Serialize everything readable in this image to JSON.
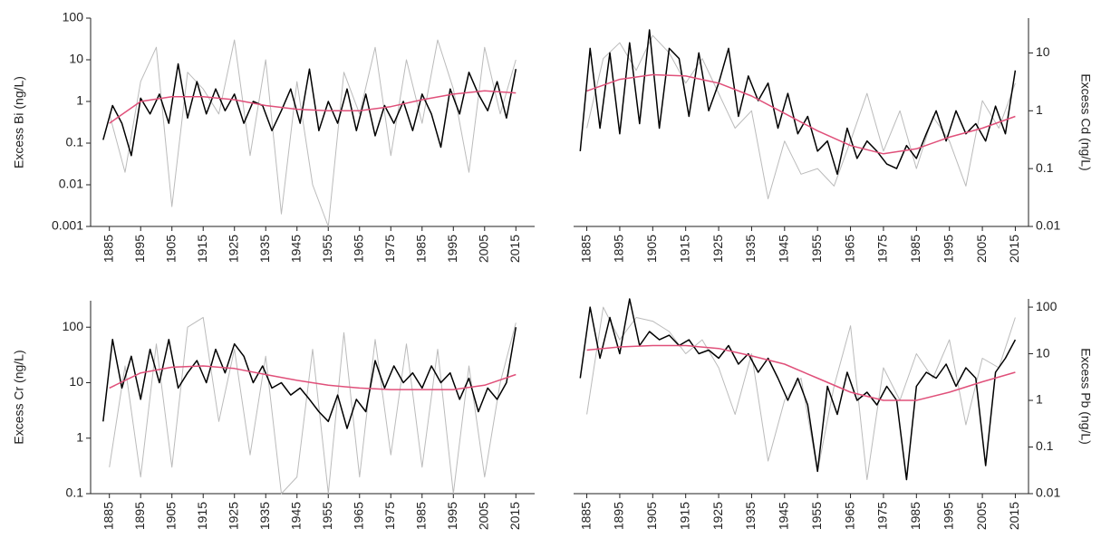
{
  "chart_data": [
    {
      "type": "line",
      "ylabel": "Excess Bi (ng/L)",
      "log": true,
      "yaxis": "left",
      "xlim": [
        1879,
        2021
      ],
      "xticks": [
        1885,
        1895,
        1905,
        1915,
        1925,
        1935,
        1945,
        1955,
        1965,
        1975,
        1985,
        1995,
        2005,
        2015
      ],
      "ylim": [
        0.001,
        100
      ],
      "yticks": [
        0.001,
        0.01,
        0.1,
        1,
        10,
        100
      ],
      "series": [
        {
          "color": "#bbbbbb",
          "x": [
            1885,
            1890,
            1895,
            1900,
            1905,
            1910,
            1915,
            1920,
            1925,
            1930,
            1935,
            1940,
            1945,
            1950,
            1955,
            1960,
            1965,
            1970,
            1975,
            1980,
            1985,
            1990,
            1995,
            2000,
            2005,
            2010,
            2015
          ],
          "values": [
            0.5,
            0.02,
            3,
            20,
            0.003,
            5,
            2,
            0.5,
            30,
            0.05,
            10,
            0.002,
            3,
            0.01,
            0.001,
            5,
            0.5,
            20,
            0.05,
            10,
            0.3,
            30,
            2,
            0.02,
            20,
            0.5,
            10
          ]
        },
        {
          "color": "#000000",
          "x": [
            1883,
            1886,
            1889,
            1892,
            1895,
            1898,
            1901,
            1904,
            1907,
            1910,
            1913,
            1916,
            1919,
            1922,
            1925,
            1928,
            1931,
            1934,
            1937,
            1940,
            1943,
            1946,
            1949,
            1952,
            1955,
            1958,
            1961,
            1964,
            1967,
            1970,
            1973,
            1976,
            1979,
            1982,
            1985,
            1988,
            1991,
            1994,
            1997,
            2000,
            2003,
            2006,
            2009,
            2012,
            2015
          ],
          "values": [
            0.12,
            0.8,
            0.3,
            0.05,
            1.2,
            0.5,
            1.5,
            0.3,
            8,
            0.4,
            3,
            0.5,
            2,
            0.6,
            1.5,
            0.3,
            1,
            0.8,
            0.2,
            0.6,
            2,
            0.3,
            6,
            0.2,
            1,
            0.3,
            2,
            0.2,
            1.5,
            0.15,
            0.8,
            0.3,
            1,
            0.2,
            1.5,
            0.5,
            0.08,
            2,
            0.5,
            5,
            1.5,
            0.6,
            3,
            0.4,
            6
          ]
        },
        {
          "color": "#e0507a",
          "x": [
            1885,
            1895,
            1905,
            1915,
            1925,
            1935,
            1945,
            1955,
            1965,
            1975,
            1985,
            1995,
            2005,
            2015
          ],
          "values": [
            0.3,
            1,
            1.3,
            1.3,
            1.1,
            0.8,
            0.65,
            0.6,
            0.6,
            0.75,
            1.1,
            1.5,
            1.8,
            1.6
          ]
        }
      ]
    },
    {
      "type": "line",
      "ylabel": "Excess Cd (ng/L)",
      "log": true,
      "yaxis": "right",
      "xlim": [
        1881,
        2019
      ],
      "xticks": [
        1885,
        1895,
        1905,
        1915,
        1925,
        1935,
        1945,
        1955,
        1965,
        1975,
        1985,
        1995,
        2005,
        2015
      ],
      "ylim": [
        0.01,
        40
      ],
      "yticks": [
        0.01,
        0.1,
        1,
        10
      ],
      "series": [
        {
          "color": "#bbbbbb",
          "x": [
            1885,
            1890,
            1895,
            1900,
            1905,
            1910,
            1915,
            1920,
            1925,
            1930,
            1935,
            1940,
            1945,
            1950,
            1955,
            1960,
            1965,
            1970,
            1975,
            1980,
            1985,
            1990,
            1995,
            2000,
            2005,
            2010,
            2015
          ],
          "values": [
            0.5,
            8,
            15,
            5,
            20,
            10,
            3,
            8,
            2,
            0.5,
            1,
            0.03,
            0.3,
            0.08,
            0.1,
            0.05,
            0.3,
            2,
            0.2,
            1,
            0.1,
            0.8,
            0.3,
            0.05,
            1.5,
            0.5,
            3
          ]
        },
        {
          "color": "#000000",
          "x": [
            1883,
            1886,
            1889,
            1892,
            1895,
            1898,
            1901,
            1904,
            1907,
            1910,
            1913,
            1916,
            1919,
            1922,
            1925,
            1928,
            1931,
            1934,
            1937,
            1940,
            1943,
            1946,
            1949,
            1952,
            1955,
            1958,
            1961,
            1964,
            1967,
            1970,
            1973,
            1976,
            1979,
            1982,
            1985,
            1988,
            1991,
            1994,
            1997,
            2000,
            2003,
            2006,
            2009,
            2012,
            2015
          ],
          "values": [
            0.2,
            12,
            0.5,
            10,
            0.4,
            15,
            0.6,
            25,
            0.5,
            12,
            8,
            0.8,
            10,
            1,
            3,
            12,
            0.8,
            4,
            1.5,
            3,
            0.5,
            2,
            0.4,
            0.8,
            0.2,
            0.3,
            0.08,
            0.5,
            0.15,
            0.3,
            0.2,
            0.12,
            0.1,
            0.25,
            0.15,
            0.4,
            1,
            0.3,
            1,
            0.4,
            0.6,
            0.3,
            1.2,
            0.4,
            5
          ]
        },
        {
          "color": "#e0507a",
          "x": [
            1885,
            1895,
            1905,
            1915,
            1925,
            1935,
            1945,
            1955,
            1965,
            1975,
            1985,
            1995,
            2005,
            2015
          ],
          "values": [
            2.2,
            3.5,
            4.2,
            4,
            3,
            1.8,
            0.9,
            0.45,
            0.25,
            0.18,
            0.22,
            0.35,
            0.5,
            0.8
          ]
        }
      ]
    },
    {
      "type": "line",
      "ylabel": "Excess Cr (ng/L)",
      "log": true,
      "yaxis": "left",
      "xlim": [
        1879,
        2021
      ],
      "xticks": [
        1885,
        1895,
        1905,
        1915,
        1925,
        1935,
        1945,
        1955,
        1965,
        1975,
        1985,
        1995,
        2005,
        2015
      ],
      "ylim": [
        0.1,
        300
      ],
      "yticks": [
        0.1,
        1,
        10,
        100
      ],
      "series": [
        {
          "color": "#bbbbbb",
          "x": [
            1885,
            1890,
            1895,
            1900,
            1905,
            1910,
            1915,
            1920,
            1925,
            1930,
            1935,
            1940,
            1945,
            1950,
            1955,
            1960,
            1965,
            1970,
            1975,
            1980,
            1985,
            1990,
            1995,
            2000,
            2005,
            2010,
            2015
          ],
          "values": [
            0.3,
            20,
            0.2,
            50,
            0.3,
            100,
            150,
            2,
            40,
            0.5,
            30,
            0.1,
            0.2,
            40,
            0.1,
            80,
            0.2,
            60,
            0.5,
            50,
            0.3,
            40,
            0.1,
            20,
            0.2,
            10,
            120
          ]
        },
        {
          "color": "#000000",
          "x": [
            1883,
            1886,
            1889,
            1892,
            1895,
            1898,
            1901,
            1904,
            1907,
            1910,
            1913,
            1916,
            1919,
            1922,
            1925,
            1928,
            1931,
            1934,
            1937,
            1940,
            1943,
            1946,
            1949,
            1952,
            1955,
            1958,
            1961,
            1964,
            1967,
            1970,
            1973,
            1976,
            1979,
            1982,
            1985,
            1988,
            1991,
            1994,
            1997,
            2000,
            2003,
            2006,
            2009,
            2012,
            2015
          ],
          "values": [
            2,
            60,
            8,
            30,
            5,
            40,
            10,
            60,
            8,
            15,
            25,
            10,
            40,
            15,
            50,
            30,
            10,
            20,
            8,
            10,
            6,
            8,
            5,
            3,
            2,
            6,
            1.5,
            5,
            3,
            25,
            8,
            20,
            10,
            15,
            8,
            20,
            10,
            15,
            5,
            12,
            3,
            8,
            5,
            10,
            100
          ]
        },
        {
          "color": "#e0507a",
          "x": [
            1885,
            1895,
            1905,
            1915,
            1925,
            1935,
            1945,
            1955,
            1965,
            1975,
            1985,
            1995,
            2005,
            2015
          ],
          "values": [
            8,
            15,
            19,
            20,
            18,
            14,
            11,
            9,
            8,
            7.5,
            7.5,
            7.5,
            9,
            14
          ]
        }
      ]
    },
    {
      "type": "line",
      "ylabel": "Excess Pb (ng/L)",
      "log": true,
      "yaxis": "right",
      "xlim": [
        1881,
        2019
      ],
      "xticks": [
        1885,
        1895,
        1905,
        1915,
        1925,
        1935,
        1945,
        1955,
        1965,
        1975,
        1985,
        1995,
        2005,
        2015
      ],
      "ylim": [
        0.01,
        150
      ],
      "yticks": [
        0.01,
        0.1,
        1,
        10,
        100
      ],
      "series": [
        {
          "color": "#bbbbbb",
          "x": [
            1885,
            1890,
            1895,
            1900,
            1905,
            1910,
            1915,
            1920,
            1925,
            1930,
            1935,
            1940,
            1945,
            1950,
            1955,
            1960,
            1965,
            1970,
            1975,
            1980,
            1985,
            1990,
            1995,
            2000,
            2005,
            2010,
            2015
          ],
          "values": [
            0.5,
            100,
            20,
            60,
            50,
            30,
            10,
            20,
            5,
            0.5,
            10,
            0.05,
            1,
            3,
            0.03,
            2,
            40,
            0.02,
            5,
            1,
            10,
            3,
            20,
            0.3,
            8,
            5,
            60
          ]
        },
        {
          "color": "#000000",
          "x": [
            1883,
            1886,
            1889,
            1892,
            1895,
            1898,
            1901,
            1904,
            1907,
            1910,
            1913,
            1916,
            1919,
            1922,
            1925,
            1928,
            1931,
            1934,
            1937,
            1940,
            1943,
            1946,
            1949,
            1952,
            1955,
            1958,
            1961,
            1964,
            1967,
            1970,
            1973,
            1976,
            1979,
            1982,
            1985,
            1988,
            1991,
            1994,
            1997,
            2000,
            2003,
            2006,
            2009,
            2012,
            2015
          ],
          "values": [
            3,
            100,
            8,
            60,
            10,
            150,
            15,
            30,
            20,
            25,
            15,
            20,
            10,
            12,
            8,
            15,
            6,
            10,
            4,
            8,
            3,
            1,
            3,
            0.8,
            0.03,
            2,
            0.5,
            4,
            1,
            1.5,
            0.8,
            2,
            1,
            0.02,
            2,
            4,
            3,
            6,
            2,
            5,
            3,
            0.04,
            4,
            8,
            20
          ]
        },
        {
          "color": "#e0507a",
          "x": [
            1885,
            1895,
            1905,
            1915,
            1925,
            1935,
            1945,
            1955,
            1965,
            1975,
            1985,
            1995,
            2005,
            2015
          ],
          "values": [
            12,
            14,
            15,
            15,
            13,
            9,
            6,
            3,
            1.5,
            1,
            1,
            1.5,
            2.5,
            4
          ]
        }
      ]
    }
  ]
}
